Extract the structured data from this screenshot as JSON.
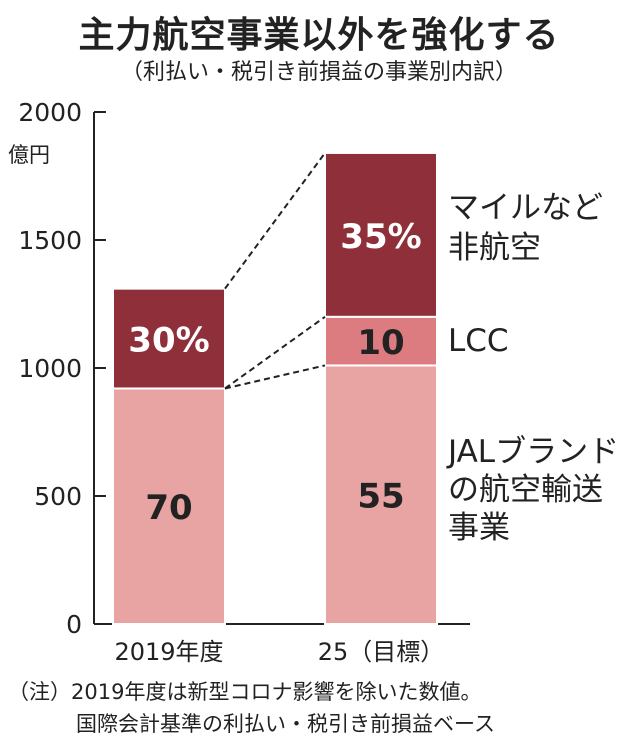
{
  "title": "主力航空事業以外を強化する",
  "subtitle": "（利払い・税引き前損益の事業別内訳）",
  "notes": [
    "（注）2019年度は新型コロナ影響を除いた数値。",
    "国際会計基準の利払い・税引き前損益ベース"
  ],
  "colors": {
    "jal_brand": "#E8A3A3",
    "lcc": "#DC7C80",
    "mileage": "#8E2F3A",
    "bar_border": "#ffffff",
    "axis": "#222222"
  },
  "chart_data": {
    "type": "bar",
    "stacked": true,
    "unit_label": "億円",
    "ylim": [
      0,
      2000
    ],
    "yticks": [
      0,
      500,
      1000,
      1500,
      2000
    ],
    "categories": [
      "2019年度",
      "25（目標）"
    ],
    "totals": [
      1310,
      1840
    ],
    "series": [
      {
        "name": "JAL ブランドの航空輸送事業",
        "values": [
          920,
          1010
        ],
        "share_labels": [
          "70",
          "55"
        ],
        "color": "#E8A3A3",
        "label_color": "#222222"
      },
      {
        "name": "LCC",
        "values": [
          0,
          190
        ],
        "share_labels": [
          "",
          "10"
        ],
        "color": "#DC7C80",
        "label_color": "#222222"
      },
      {
        "name": "マイルなど非航空",
        "values": [
          390,
          640
        ],
        "share_labels": [
          "30%",
          "35%"
        ],
        "color": "#8E2F3A",
        "label_color": "#ffffff"
      }
    ],
    "legend": [
      {
        "series": 2,
        "lines": [
          "マイルなど",
          "非航空"
        ]
      },
      {
        "series": 1,
        "lines": [
          "LCC"
        ]
      },
      {
        "series": 0,
        "lines": [
          "JALブランド",
          "の航空輸送",
          "事業"
        ]
      }
    ],
    "legend_placement": "right",
    "grid": false
  }
}
